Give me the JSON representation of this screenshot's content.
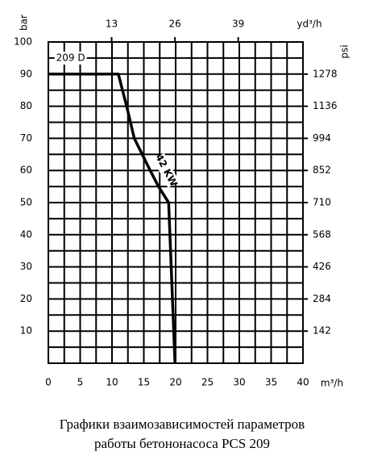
{
  "chart_data": {
    "type": "line",
    "caption": [
      "Графики взаимозависимостей параметров",
      "работы бетононасоса PCS 209"
    ],
    "xlabel": "m³/h",
    "x2label": "yd³/h",
    "ylabel": "bar",
    "y2label": "psi",
    "xlim": [
      0,
      40
    ],
    "xticks": [
      0,
      5,
      10,
      15,
      20,
      25,
      30,
      35,
      40
    ],
    "x2lim": [
      0,
      52.3
    ],
    "x2ticks": [
      13,
      26,
      39
    ],
    "ylim": [
      0,
      100
    ],
    "yticks": [
      10,
      20,
      30,
      40,
      50,
      60,
      70,
      80,
      90,
      100
    ],
    "y2lim": [
      0,
      1420
    ],
    "y2ticks": [
      142,
      284,
      426,
      568,
      710,
      852,
      994,
      1136,
      1278
    ],
    "grid": true,
    "annotations": [
      {
        "text": "209 D",
        "x": 3.5,
        "y": 95
      },
      {
        "text": "42 KW",
        "x": 18.5,
        "y": 60
      }
    ],
    "series": [
      {
        "name": "42 KW",
        "color": "#000000",
        "x": [
          0,
          11,
          12.3,
          13.5,
          16,
          17.3,
          18.9,
          19.9
        ],
        "values": [
          90,
          90,
          80,
          70,
          60,
          55,
          50,
          0
        ]
      }
    ]
  }
}
